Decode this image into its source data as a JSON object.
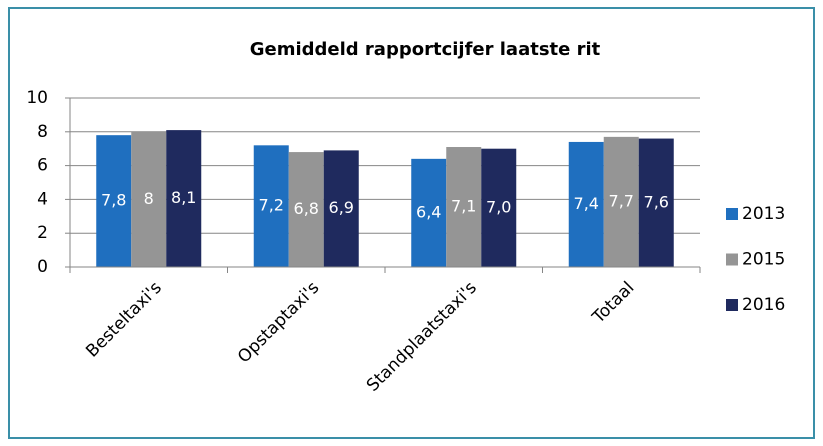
{
  "chart_data": {
    "type": "bar",
    "title": "Gemiddeld rapportcijfer laatste rit",
    "categories": [
      "Besteltaxi's",
      "Opstaptaxi's",
      "Standplaatstaxi's",
      "Totaal"
    ],
    "series": [
      {
        "name": "2013",
        "color": "#1f6fbf",
        "values": [
          7.8,
          7.2,
          6.4,
          7.4
        ],
        "value_labels": [
          "7,8",
          "7,2",
          "6,4",
          "7,4"
        ]
      },
      {
        "name": "2015",
        "color": "#959595",
        "values": [
          8,
          6.8,
          7.1,
          7.7
        ],
        "value_labels": [
          "8",
          "6,8",
          "7,1",
          "7,7"
        ]
      },
      {
        "name": "2016",
        "color": "#1f2a5e",
        "values": [
          8.1,
          6.9,
          7.0,
          7.6
        ],
        "value_labels": [
          "8,1",
          "6,9",
          "7,0",
          "7,6"
        ]
      }
    ],
    "ylim": [
      0,
      10
    ],
    "yticks": [
      0,
      2,
      4,
      6,
      8,
      10
    ],
    "grid": true,
    "legend": "right"
  }
}
